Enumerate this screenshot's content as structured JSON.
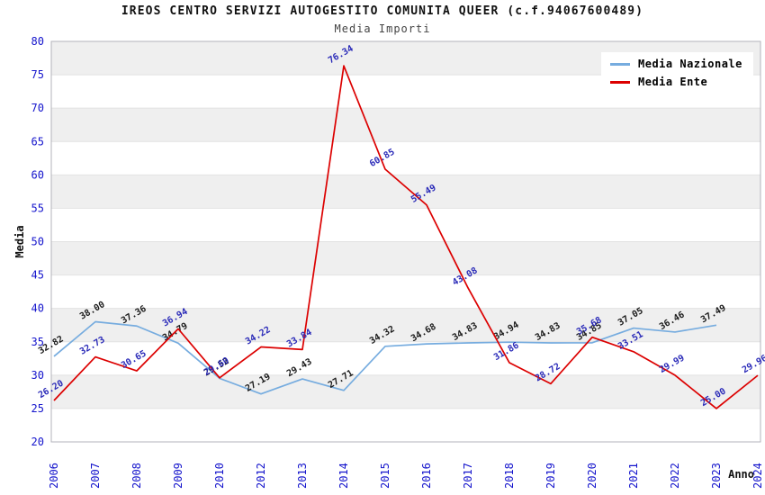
{
  "chart_data": {
    "type": "line",
    "title": "IREOS CENTRO SERVIZI AUTOGESTITO COMUNITA QUEER (c.f.94067600489)",
    "subtitle": "Media Importi",
    "xlabel": "Anno",
    "ylabel": "Media",
    "ylim": [
      20,
      80
    ],
    "ytick_step": 5,
    "grid": "horizontal-bands-alternating",
    "legend_position": "top-right",
    "categories": [
      "2006",
      "2007",
      "2008",
      "2009",
      "2010",
      "2012",
      "2013",
      "2014",
      "2015",
      "2016",
      "2017",
      "2018",
      "2019",
      "2020",
      "2021",
      "2022",
      "2023",
      "2024"
    ],
    "series": [
      {
        "name": "Media Nazionale",
        "color": "#76acdf",
        "label_color": "#1a1a1a",
        "values": [
          "32.82",
          "38.00",
          "37.36",
          "34.79",
          "29.52",
          "27.19",
          "29.43",
          "27.71",
          "34.32",
          "34.68",
          "34.83",
          "34.94",
          "34.83",
          "34.85",
          "37.05",
          "36.46",
          "37.49",
          null
        ]
      },
      {
        "name": "Media Ente",
        "color": "#dc0000",
        "label_color": "#2a2ab8",
        "values": [
          "26.20",
          "32.73",
          "30.65",
          "36.94",
          "29.60",
          "34.22",
          "33.84",
          "76.34",
          "60.85",
          "55.49",
          "43.08",
          "31.86",
          "28.72",
          "35.68",
          "33.51",
          "29.99",
          "25.00",
          "29.96"
        ]
      }
    ],
    "colors": {
      "band_gray": "#efefef",
      "band_white": "#ffffff",
      "gridline": "#e2e2e2",
      "plot_border": "#b3b3bb",
      "tick_text": "#1414cc",
      "axis_title_text": "#111111"
    }
  }
}
